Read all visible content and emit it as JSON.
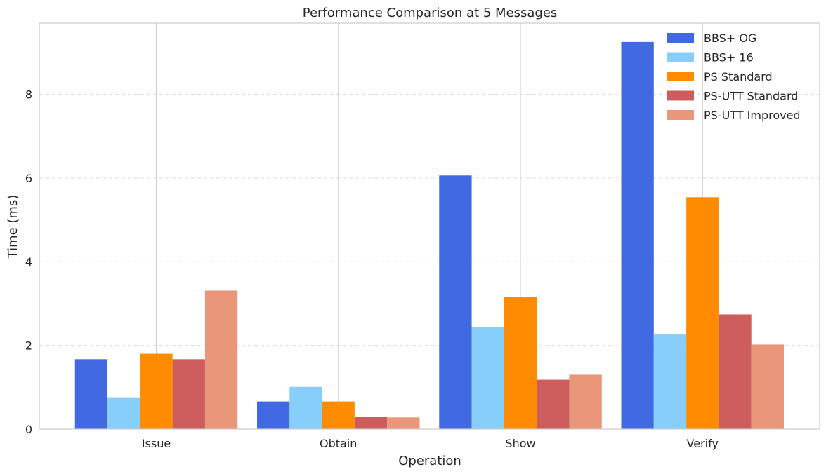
{
  "chart_data": {
    "type": "bar",
    "title": "Performance Comparison at 5 Messages",
    "xlabel": "Operation",
    "ylabel": "Time (ms)",
    "categories": [
      "Issue",
      "Obtain",
      "Show",
      "Verify"
    ],
    "ylim": [
      0,
      9.7
    ],
    "yticks": [
      0,
      2,
      4,
      6,
      8
    ],
    "grid": {
      "y": "dashed",
      "x": "solid"
    },
    "legend_position": "top-right",
    "series": [
      {
        "name": "BBS+ OG",
        "color": "#4169e1",
        "values": [
          1.67,
          0.66,
          6.06,
          9.25
        ]
      },
      {
        "name": "BBS+ 16",
        "color": "#87cefa",
        "values": [
          0.76,
          1.01,
          2.44,
          2.26
        ]
      },
      {
        "name": "PS Standard",
        "color": "#ff8c00",
        "values": [
          1.8,
          0.66,
          3.15,
          5.54
        ]
      },
      {
        "name": "PS-UTT Standard",
        "color": "#cd5c5c",
        "values": [
          1.67,
          0.3,
          1.18,
          2.74
        ]
      },
      {
        "name": "PS-UTT Improved",
        "color": "#e9967a",
        "values": [
          3.31,
          0.28,
          1.3,
          2.02
        ]
      }
    ]
  }
}
